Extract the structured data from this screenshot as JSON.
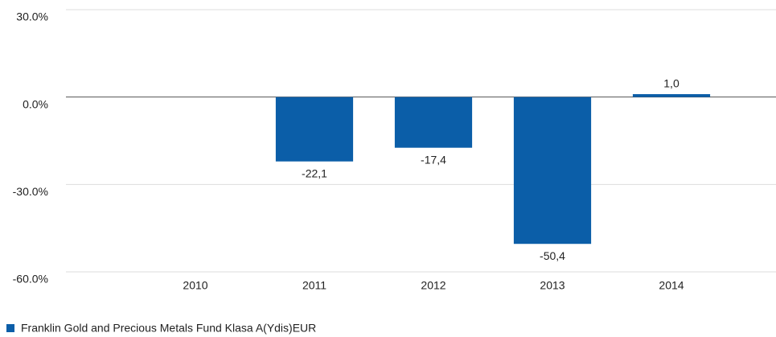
{
  "chart_data": {
    "type": "bar",
    "categories": [
      "2010",
      "2011",
      "2012",
      "2013",
      "2014"
    ],
    "series": [
      {
        "name": "Franklin Gold and Precious Metals Fund Klasa A(Ydis)EUR",
        "color": "#0b5ea8",
        "values": [
          null,
          -22.1,
          -17.4,
          -50.4,
          1.0
        ],
        "value_labels": [
          null,
          "-22,1",
          "-17,4",
          "-50,4",
          "1,0"
        ]
      }
    ],
    "ylim": [
      -60,
      30
    ],
    "yticks": [
      {
        "value": -60,
        "label": "-60.0%"
      },
      {
        "value": -30,
        "label": "-30.0%"
      },
      {
        "value": 0,
        "label": "0.0%"
      },
      {
        "value": 30,
        "label": "30.0%"
      }
    ],
    "grid": true,
    "legend": "bottom-left"
  }
}
